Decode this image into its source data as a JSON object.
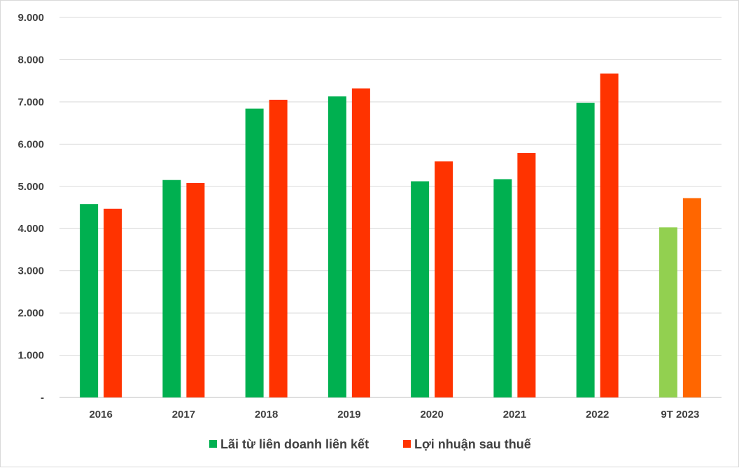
{
  "chart_data": {
    "type": "bar",
    "title": "",
    "xlabel": "",
    "ylabel": "",
    "ylim": [
      0,
      9000
    ],
    "y_ticks": [
      {
        "value": 0,
        "label": "-"
      },
      {
        "value": 1000,
        "label": "1.000"
      },
      {
        "value": 2000,
        "label": "2.000"
      },
      {
        "value": 3000,
        "label": "3.000"
      },
      {
        "value": 4000,
        "label": "4.000"
      },
      {
        "value": 5000,
        "label": "5.000"
      },
      {
        "value": 6000,
        "label": "6.000"
      },
      {
        "value": 7000,
        "label": "7.000"
      },
      {
        "value": 8000,
        "label": "8.000"
      },
      {
        "value": 9000,
        "label": "9.000"
      }
    ],
    "grid": true,
    "legend_position": "bottom",
    "categories": [
      "2016",
      "2017",
      "2018",
      "2019",
      "2020",
      "2021",
      "2022",
      "9T 2023"
    ],
    "series": [
      {
        "name": "Lãi từ liên doanh liên kết",
        "color": "#00b050",
        "values": [
          4580,
          5150,
          6840,
          7130,
          5120,
          5170,
          6980,
          4030
        ],
        "highlight": {
          "index": 7,
          "color": "#92d050"
        }
      },
      {
        "name": "Lợi nhuận sau thuế",
        "color": "#ff3300",
        "values": [
          4470,
          5080,
          7050,
          7320,
          5590,
          5790,
          7670,
          4720
        ],
        "highlight": {
          "index": 7,
          "color": "#ff6600"
        }
      }
    ]
  }
}
